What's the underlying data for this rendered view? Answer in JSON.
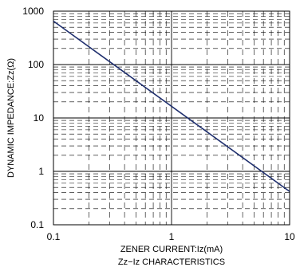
{
  "chart_data": {
    "type": "line",
    "x_scale": "log",
    "y_scale": "log",
    "xlim": [
      0.1,
      10
    ],
    "ylim": [
      0.1,
      1000
    ],
    "grid": true,
    "xlabel": "ZENER CURRENT:Iz(mA)",
    "ylabel": "DYNAMIC IMPEDANCE:Zz(Ω)",
    "caption": "Zz−Iz CHARACTERISTICS",
    "x_tick_labels": [
      "0.1",
      "1",
      "10"
    ],
    "y_tick_labels": [
      "0.1",
      "1",
      "10",
      "100",
      "1000"
    ],
    "series": [
      {
        "x": [
          0.1,
          10
        ],
        "y": [
          650,
          0.42
        ],
        "color": "#1f2f6e"
      }
    ]
  }
}
